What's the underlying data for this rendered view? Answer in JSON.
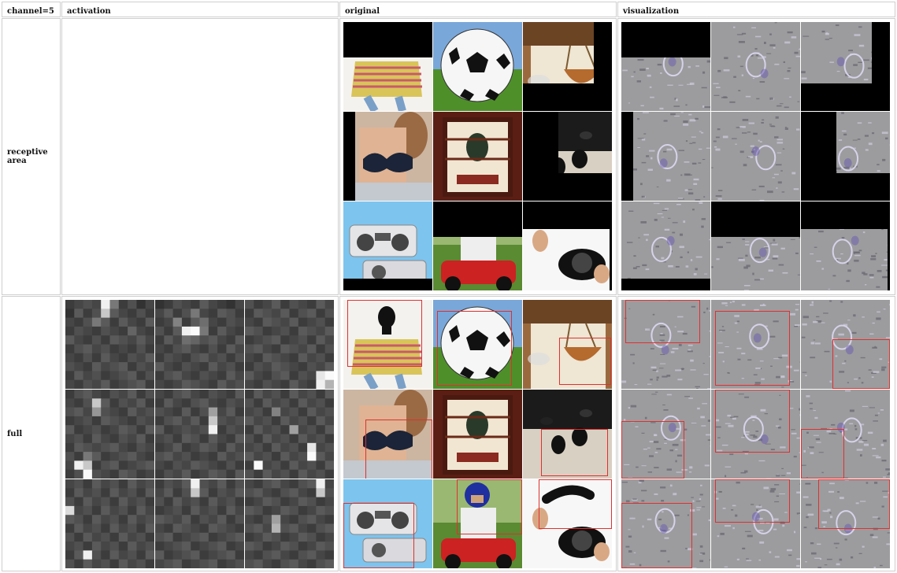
{
  "headers": {
    "channel": "channel=5",
    "activation": "activation",
    "original": "original",
    "visualization": "visualization"
  },
  "rows": {
    "receptive": "receptive area",
    "full": "full"
  },
  "heatmaps": [
    [
      [
        60,
        70,
        80,
        70,
        240,
        120,
        60,
        80,
        50,
        70
      ],
      [
        50,
        90,
        60,
        80,
        200,
        90,
        70,
        60,
        80,
        60
      ],
      [
        70,
        60,
        80,
        120,
        90,
        60,
        90,
        70,
        60,
        90
      ],
      [
        60,
        80,
        70,
        60,
        80,
        70,
        60,
        100,
        70,
        60
      ],
      [
        90,
        70,
        60,
        80,
        60,
        90,
        80,
        70,
        90,
        70
      ],
      [
        60,
        80,
        90,
        70,
        80,
        60,
        70,
        60,
        80,
        60
      ],
      [
        70,
        60,
        80,
        60,
        90,
        70,
        60,
        80,
        70,
        90
      ],
      [
        80,
        70,
        60,
        90,
        70,
        80,
        90,
        60,
        80,
        70
      ],
      [
        60,
        90,
        70,
        80,
        60,
        70,
        80,
        90,
        60,
        80
      ],
      [
        70,
        60,
        80,
        70,
        90,
        60,
        70,
        80,
        90,
        60
      ]
    ],
    [
      [
        50,
        60,
        80,
        70,
        60,
        90,
        70,
        60,
        50,
        70
      ],
      [
        70,
        90,
        60,
        80,
        120,
        70,
        60,
        90,
        80,
        60
      ],
      [
        60,
        70,
        130,
        60,
        90,
        110,
        70,
        60,
        80,
        70
      ],
      [
        80,
        60,
        90,
        240,
        250,
        120,
        60,
        90,
        70,
        60
      ],
      [
        60,
        90,
        70,
        110,
        100,
        80,
        90,
        70,
        60,
        90
      ],
      [
        70,
        60,
        80,
        90,
        70,
        60,
        80,
        60,
        90,
        70
      ],
      [
        60,
        80,
        70,
        60,
        80,
        90,
        70,
        80,
        60,
        80
      ],
      [
        90,
        70,
        60,
        80,
        70,
        60,
        90,
        70,
        80,
        60
      ],
      [
        60,
        80,
        90,
        70,
        60,
        80,
        70,
        60,
        90,
        70
      ],
      [
        70,
        60,
        70,
        90,
        80,
        70,
        60,
        90,
        70,
        80
      ]
    ],
    [
      [
        80,
        60,
        70,
        90,
        60,
        80,
        70,
        60,
        90,
        70
      ],
      [
        60,
        90,
        80,
        70,
        90,
        60,
        80,
        90,
        60,
        80
      ],
      [
        70,
        60,
        90,
        80,
        70,
        90,
        60,
        70,
        80,
        60
      ],
      [
        90,
        80,
        60,
        70,
        80,
        60,
        90,
        80,
        70,
        90
      ],
      [
        60,
        70,
        80,
        90,
        60,
        70,
        80,
        60,
        90,
        70
      ],
      [
        80,
        90,
        70,
        60,
        90,
        80,
        70,
        90,
        60,
        80
      ],
      [
        70,
        60,
        90,
        80,
        70,
        60,
        90,
        70,
        80,
        60
      ],
      [
        60,
        80,
        70,
        90,
        80,
        70,
        60,
        80,
        70,
        90
      ],
      [
        90,
        70,
        60,
        80,
        90,
        60,
        80,
        70,
        230,
        250
      ],
      [
        70,
        60,
        80,
        70,
        60,
        90,
        70,
        60,
        240,
        180
      ]
    ],
    [
      [
        60,
        80,
        90,
        70,
        60,
        80,
        70,
        90,
        60,
        80
      ],
      [
        70,
        60,
        80,
        200,
        90,
        60,
        80,
        70,
        90,
        60
      ],
      [
        80,
        90,
        70,
        150,
        80,
        70,
        60,
        90,
        70,
        80
      ],
      [
        60,
        70,
        80,
        60,
        90,
        80,
        70,
        60,
        80,
        70
      ],
      [
        90,
        60,
        70,
        80,
        60,
        70,
        90,
        80,
        60,
        90
      ],
      [
        70,
        80,
        60,
        90,
        70,
        60,
        80,
        70,
        90,
        60
      ],
      [
        60,
        90,
        80,
        70,
        80,
        90,
        70,
        60,
        80,
        70
      ],
      [
        80,
        60,
        120,
        90,
        60,
        70,
        80,
        90,
        70,
        60
      ],
      [
        70,
        240,
        200,
        60,
        80,
        90,
        60,
        70,
        80,
        90
      ],
      [
        60,
        80,
        250,
        80,
        70,
        60,
        90,
        80,
        60,
        70
      ]
    ],
    [
      [
        70,
        60,
        80,
        90,
        70,
        60,
        80,
        70,
        60,
        90
      ],
      [
        60,
        90,
        70,
        60,
        80,
        90,
        70,
        60,
        80,
        70
      ],
      [
        80,
        70,
        60,
        90,
        60,
        80,
        160,
        70,
        90,
        60
      ],
      [
        60,
        80,
        90,
        70,
        90,
        60,
        200,
        80,
        70,
        80
      ],
      [
        90,
        60,
        70,
        80,
        70,
        80,
        240,
        60,
        80,
        70
      ],
      [
        70,
        80,
        60,
        90,
        80,
        60,
        90,
        70,
        60,
        90
      ],
      [
        60,
        70,
        90,
        60,
        70,
        90,
        80,
        60,
        90,
        70
      ],
      [
        80,
        90,
        70,
        80,
        60,
        70,
        60,
        90,
        70,
        80
      ],
      [
        70,
        60,
        80,
        70,
        90,
        80,
        70,
        60,
        80,
        60
      ],
      [
        60,
        80,
        70,
        90,
        60,
        70,
        90,
        80,
        60,
        90
      ]
    ],
    [
      [
        60,
        90,
        70,
        80,
        60,
        90,
        70,
        80,
        60,
        90
      ],
      [
        80,
        60,
        90,
        70,
        80,
        60,
        90,
        70,
        80,
        60
      ],
      [
        70,
        80,
        60,
        130,
        70,
        80,
        60,
        90,
        70,
        80
      ],
      [
        90,
        70,
        80,
        60,
        90,
        70,
        80,
        60,
        90,
        70
      ],
      [
        60,
        90,
        70,
        80,
        60,
        160,
        70,
        80,
        60,
        90
      ],
      [
        80,
        60,
        90,
        70,
        80,
        60,
        90,
        70,
        80,
        60
      ],
      [
        70,
        80,
        60,
        90,
        70,
        80,
        60,
        230,
        70,
        80
      ],
      [
        90,
        70,
        80,
        60,
        90,
        70,
        80,
        250,
        90,
        70
      ],
      [
        60,
        250,
        70,
        80,
        60,
        90,
        70,
        80,
        60,
        90
      ],
      [
        80,
        60,
        90,
        70,
        80,
        60,
        90,
        70,
        80,
        60
      ]
    ],
    [
      [
        70,
        80,
        60,
        90,
        70,
        80,
        60,
        90,
        70,
        80
      ],
      [
        60,
        90,
        70,
        80,
        60,
        90,
        70,
        80,
        60,
        90
      ],
      [
        80,
        60,
        90,
        70,
        80,
        60,
        90,
        70,
        80,
        60
      ],
      [
        220,
        70,
        80,
        60,
        90,
        70,
        80,
        60,
        90,
        70
      ],
      [
        90,
        80,
        60,
        90,
        70,
        80,
        60,
        90,
        70,
        80
      ],
      [
        60,
        90,
        70,
        80,
        60,
        90,
        70,
        80,
        60,
        90
      ],
      [
        80,
        60,
        90,
        70,
        80,
        60,
        90,
        70,
        80,
        60
      ],
      [
        70,
        80,
        60,
        90,
        70,
        80,
        60,
        90,
        70,
        80
      ],
      [
        60,
        90,
        240,
        80,
        60,
        90,
        70,
        80,
        60,
        90
      ],
      [
        80,
        60,
        90,
        70,
        80,
        60,
        90,
        70,
        80,
        60
      ]
    ],
    [
      [
        60,
        80,
        70,
        90,
        240,
        80,
        70,
        90,
        60,
        80
      ],
      [
        70,
        90,
        60,
        80,
        200,
        90,
        60,
        80,
        70,
        90
      ],
      [
        80,
        60,
        90,
        70,
        80,
        60,
        90,
        70,
        80,
        60
      ],
      [
        60,
        70,
        80,
        60,
        90,
        70,
        80,
        60,
        90,
        70
      ],
      [
        90,
        80,
        70,
        90,
        60,
        80,
        70,
        90,
        60,
        80
      ],
      [
        70,
        60,
        90,
        80,
        70,
        60,
        90,
        80,
        70,
        60
      ],
      [
        80,
        90,
        60,
        70,
        80,
        90,
        60,
        70,
        80,
        90
      ],
      [
        60,
        70,
        80,
        90,
        60,
        70,
        80,
        90,
        60,
        70
      ],
      [
        90,
        60,
        70,
        80,
        90,
        60,
        70,
        80,
        90,
        60
      ],
      [
        70,
        80,
        90,
        60,
        70,
        80,
        90,
        60,
        70,
        80
      ]
    ],
    [
      [
        70,
        60,
        80,
        90,
        70,
        60,
        80,
        90,
        240,
        70
      ],
      [
        80,
        90,
        70,
        60,
        80,
        90,
        70,
        60,
        200,
        80
      ],
      [
        60,
        70,
        90,
        80,
        60,
        70,
        90,
        80,
        60,
        70
      ],
      [
        90,
        80,
        60,
        70,
        90,
        80,
        60,
        70,
        90,
        80
      ],
      [
        70,
        60,
        80,
        160,
        70,
        60,
        80,
        90,
        70,
        60
      ],
      [
        80,
        90,
        70,
        180,
        80,
        90,
        70,
        60,
        80,
        90
      ],
      [
        60,
        70,
        90,
        80,
        60,
        70,
        90,
        80,
        60,
        70
      ],
      [
        90,
        80,
        60,
        70,
        90,
        80,
        60,
        70,
        90,
        80
      ],
      [
        70,
        60,
        80,
        90,
        70,
        60,
        80,
        90,
        70,
        60
      ],
      [
        80,
        90,
        70,
        60,
        80,
        90,
        70,
        60,
        80,
        90
      ]
    ]
  ]
}
